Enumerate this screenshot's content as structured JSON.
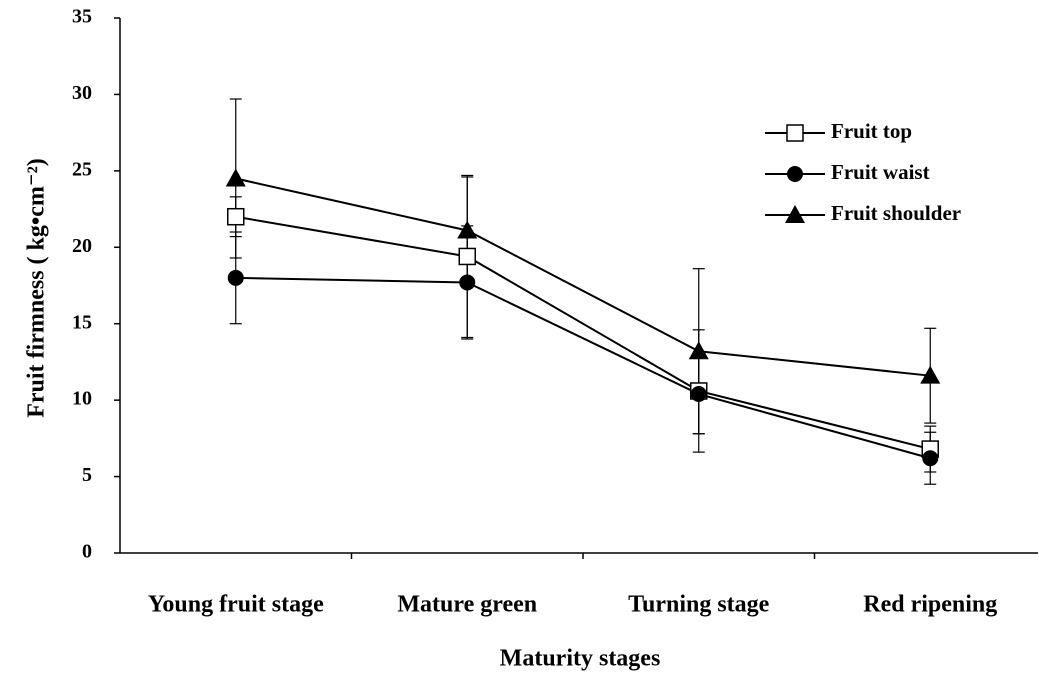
{
  "chart_data": {
    "type": "line",
    "xlabel": "Maturity stages",
    "ylabel": "Fruit firmness ( kg•cm⁻²)",
    "categories": [
      "Young fruit stage",
      "Mature green",
      "Turning stage",
      "Red ripening"
    ],
    "ylim": [
      0,
      35
    ],
    "yticks": [
      0,
      5,
      10,
      15,
      20,
      25,
      30,
      35
    ],
    "legend_position": "upper right",
    "series": [
      {
        "name": "Fruit top",
        "color": "#000000",
        "marker": "square-open",
        "values": [
          22.0,
          19.4,
          10.6,
          6.8
        ],
        "errors": [
          1.3,
          5.3,
          4.0,
          1.5
        ]
      },
      {
        "name": "Fruit waist",
        "color": "#000000",
        "marker": "circle",
        "values": [
          18.0,
          17.7,
          10.4,
          6.2
        ],
        "errors": [
          3.0,
          3.7,
          2.6,
          1.7
        ]
      },
      {
        "name": "Fruit shoulder",
        "color": "#000000",
        "marker": "triangle",
        "values": [
          24.5,
          21.1,
          13.2,
          11.6
        ],
        "errors": [
          5.2,
          3.5,
          5.4,
          3.1
        ]
      }
    ]
  }
}
